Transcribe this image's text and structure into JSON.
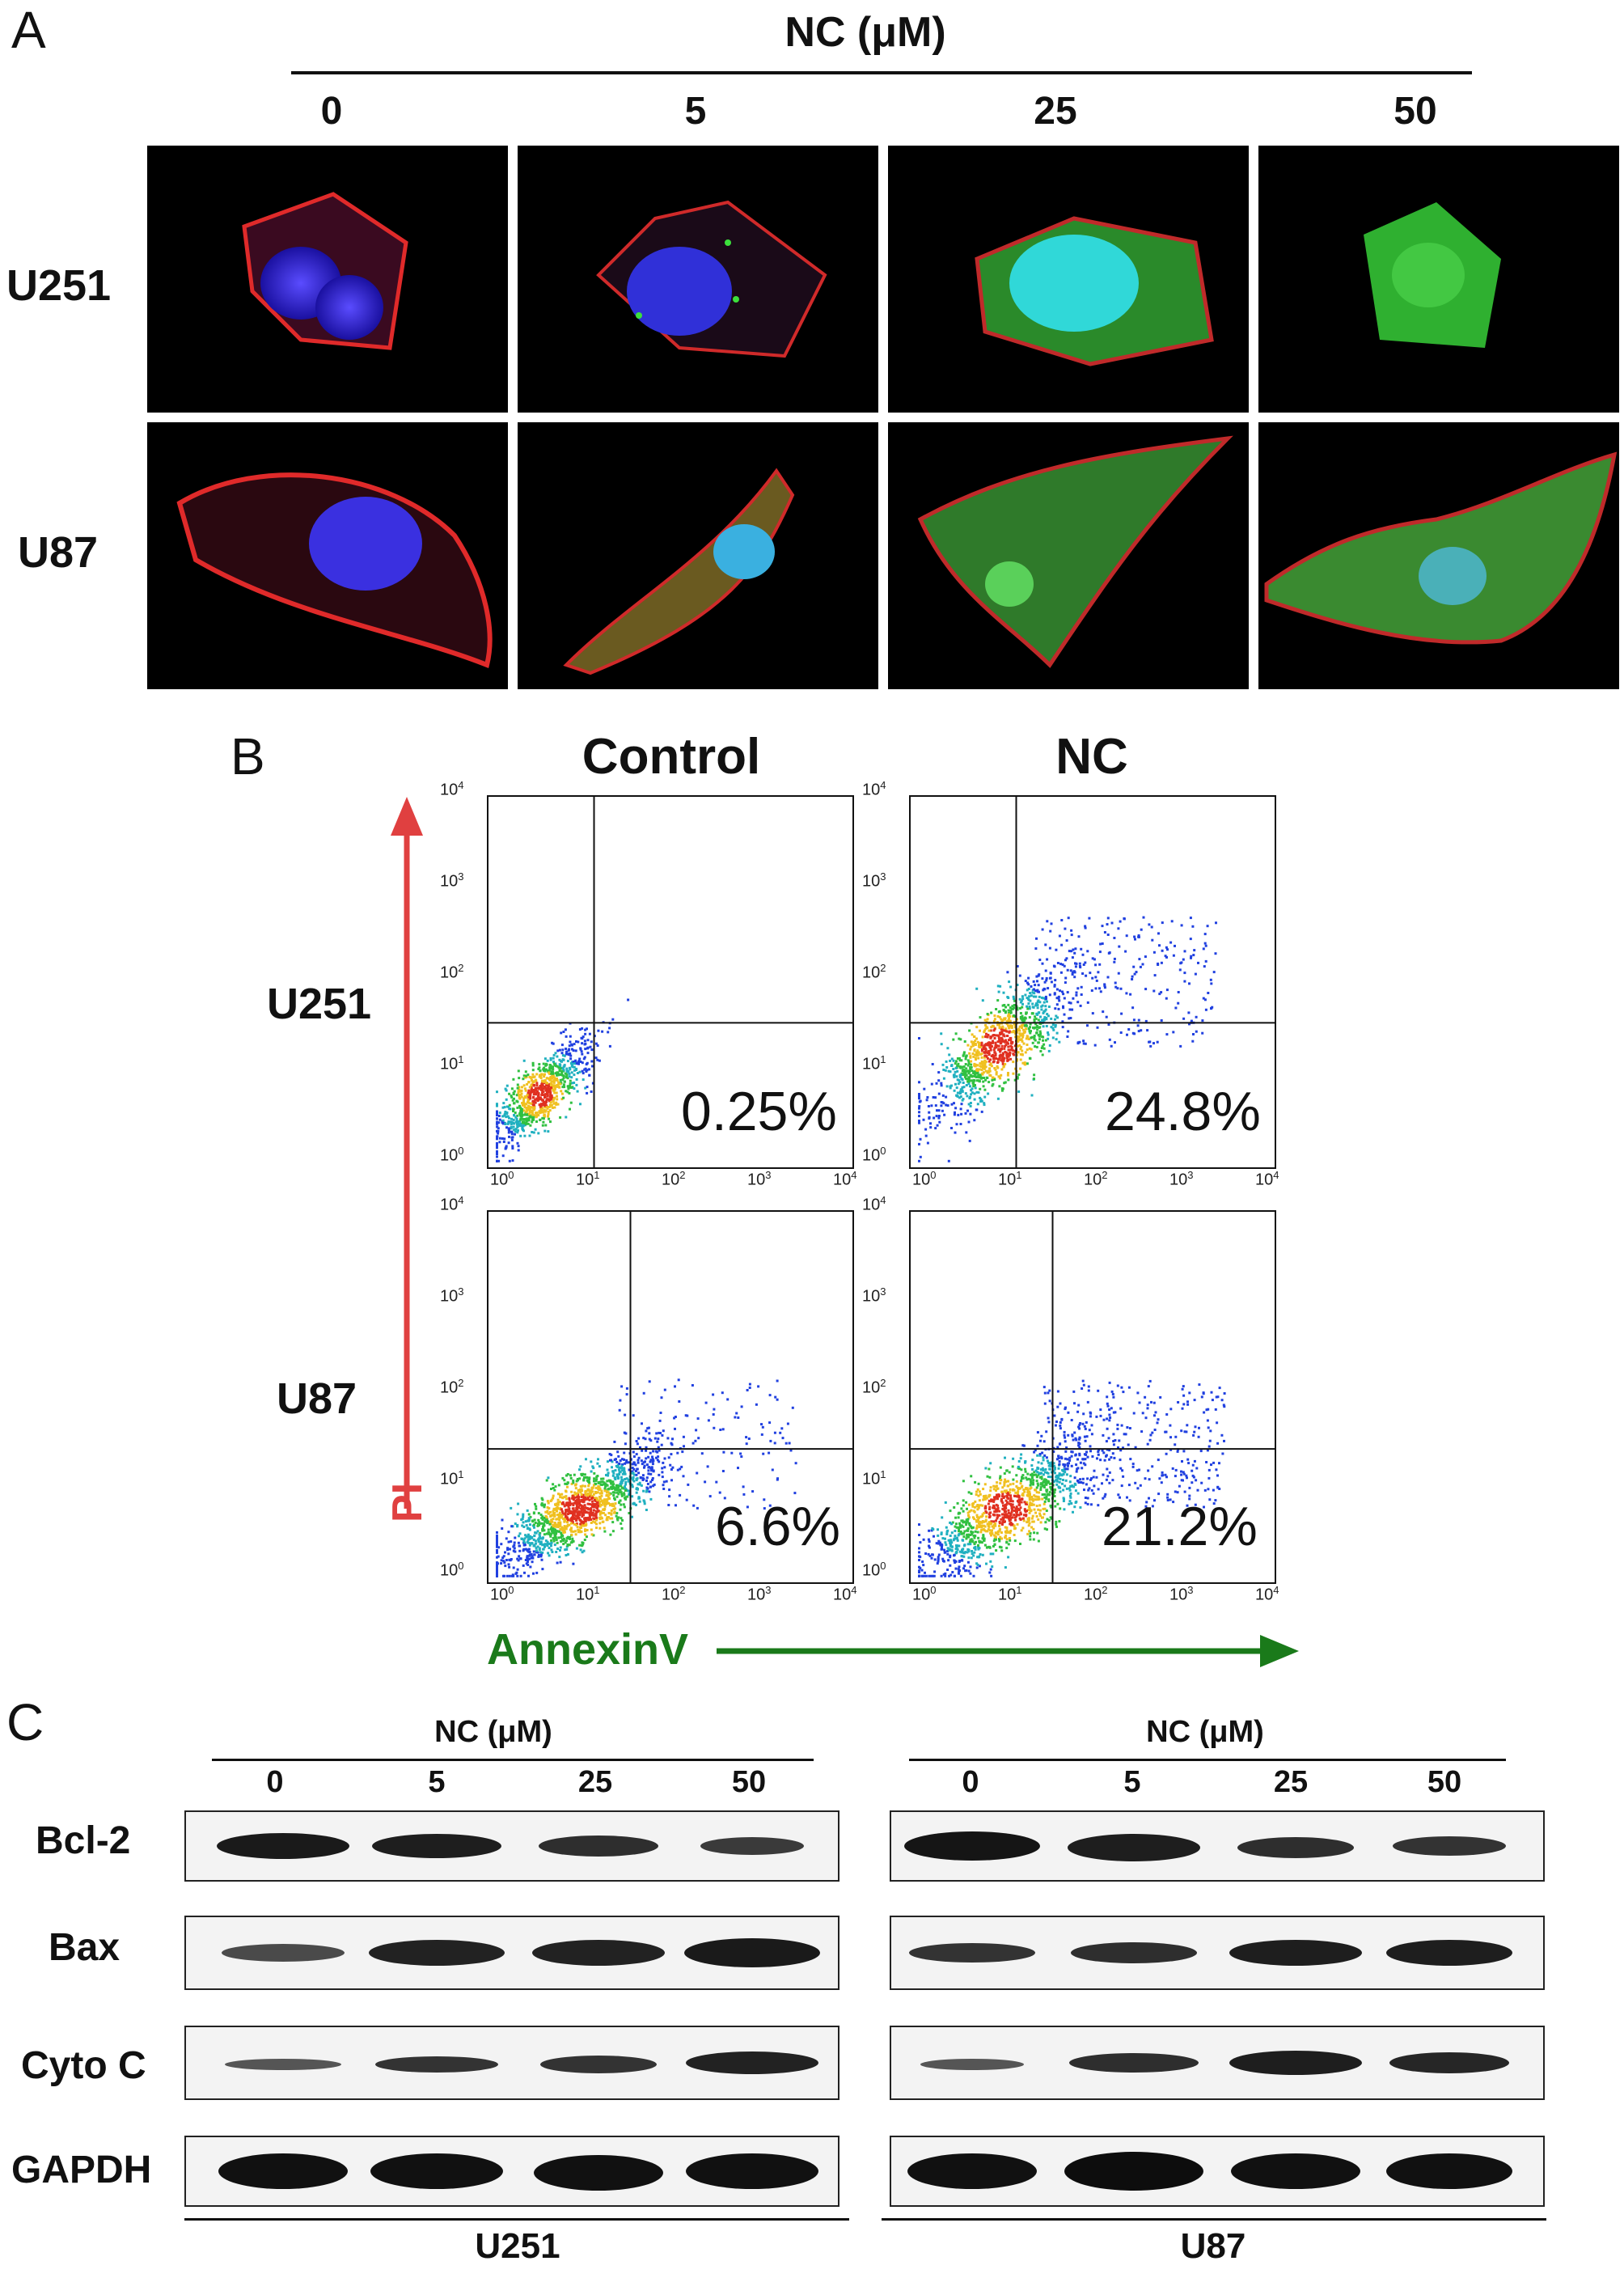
{
  "panelA": {
    "letter": "A",
    "header": "NC (μM)",
    "doses": [
      "0",
      "5",
      "25",
      "50"
    ],
    "rows": [
      "U251",
      "U87"
    ]
  },
  "panelB": {
    "letter": "B",
    "columns": [
      "Control",
      "NC"
    ],
    "rows": [
      "U251",
      "U87"
    ],
    "ylabel": "PI",
    "xlabel": "AnnexinV",
    "ticks": [
      "10",
      "0",
      "1",
      "2",
      "3",
      "4"
    ],
    "percentages": [
      [
        "0.25%",
        "24.8%"
      ],
      [
        "6.6%",
        "21.2%"
      ]
    ],
    "colors": {
      "pi_arrow": "#e04040",
      "annexin_arrow": "#1a7a1a"
    }
  },
  "panelC": {
    "letter": "C",
    "header": "NC (μM)",
    "doses": [
      "0",
      "5",
      "25",
      "50"
    ],
    "proteins": [
      "Bcl-2",
      "Bax",
      "Cyto C",
      "GAPDH"
    ],
    "cell_lines": [
      "U251",
      "U87"
    ]
  },
  "chart_data": [
    {
      "type": "scatter",
      "title": "Control",
      "cell_line": "U251",
      "xlabel": "AnnexinV",
      "ylabel": "PI",
      "x_scale": "log",
      "y_scale": "log",
      "xlim": [
        1,
        10000
      ],
      "ylim": [
        1,
        10000
      ],
      "quadrant_annotation": "0.25%"
    },
    {
      "type": "scatter",
      "title": "NC",
      "cell_line": "U251",
      "xlabel": "AnnexinV",
      "ylabel": "PI",
      "x_scale": "log",
      "y_scale": "log",
      "xlim": [
        1,
        10000
      ],
      "ylim": [
        1,
        10000
      ],
      "quadrant_annotation": "24.8%"
    },
    {
      "type": "scatter",
      "title": "Control",
      "cell_line": "U87",
      "xlabel": "AnnexinV",
      "ylabel": "PI",
      "x_scale": "log",
      "y_scale": "log",
      "xlim": [
        1,
        10000
      ],
      "ylim": [
        1,
        10000
      ],
      "quadrant_annotation": "6.6%"
    },
    {
      "type": "scatter",
      "title": "NC",
      "cell_line": "U87",
      "xlabel": "AnnexinV",
      "ylabel": "PI",
      "x_scale": "log",
      "y_scale": "log",
      "xlim": [
        1,
        10000
      ],
      "ylim": [
        1,
        10000
      ],
      "quadrant_annotation": "21.2%"
    }
  ]
}
